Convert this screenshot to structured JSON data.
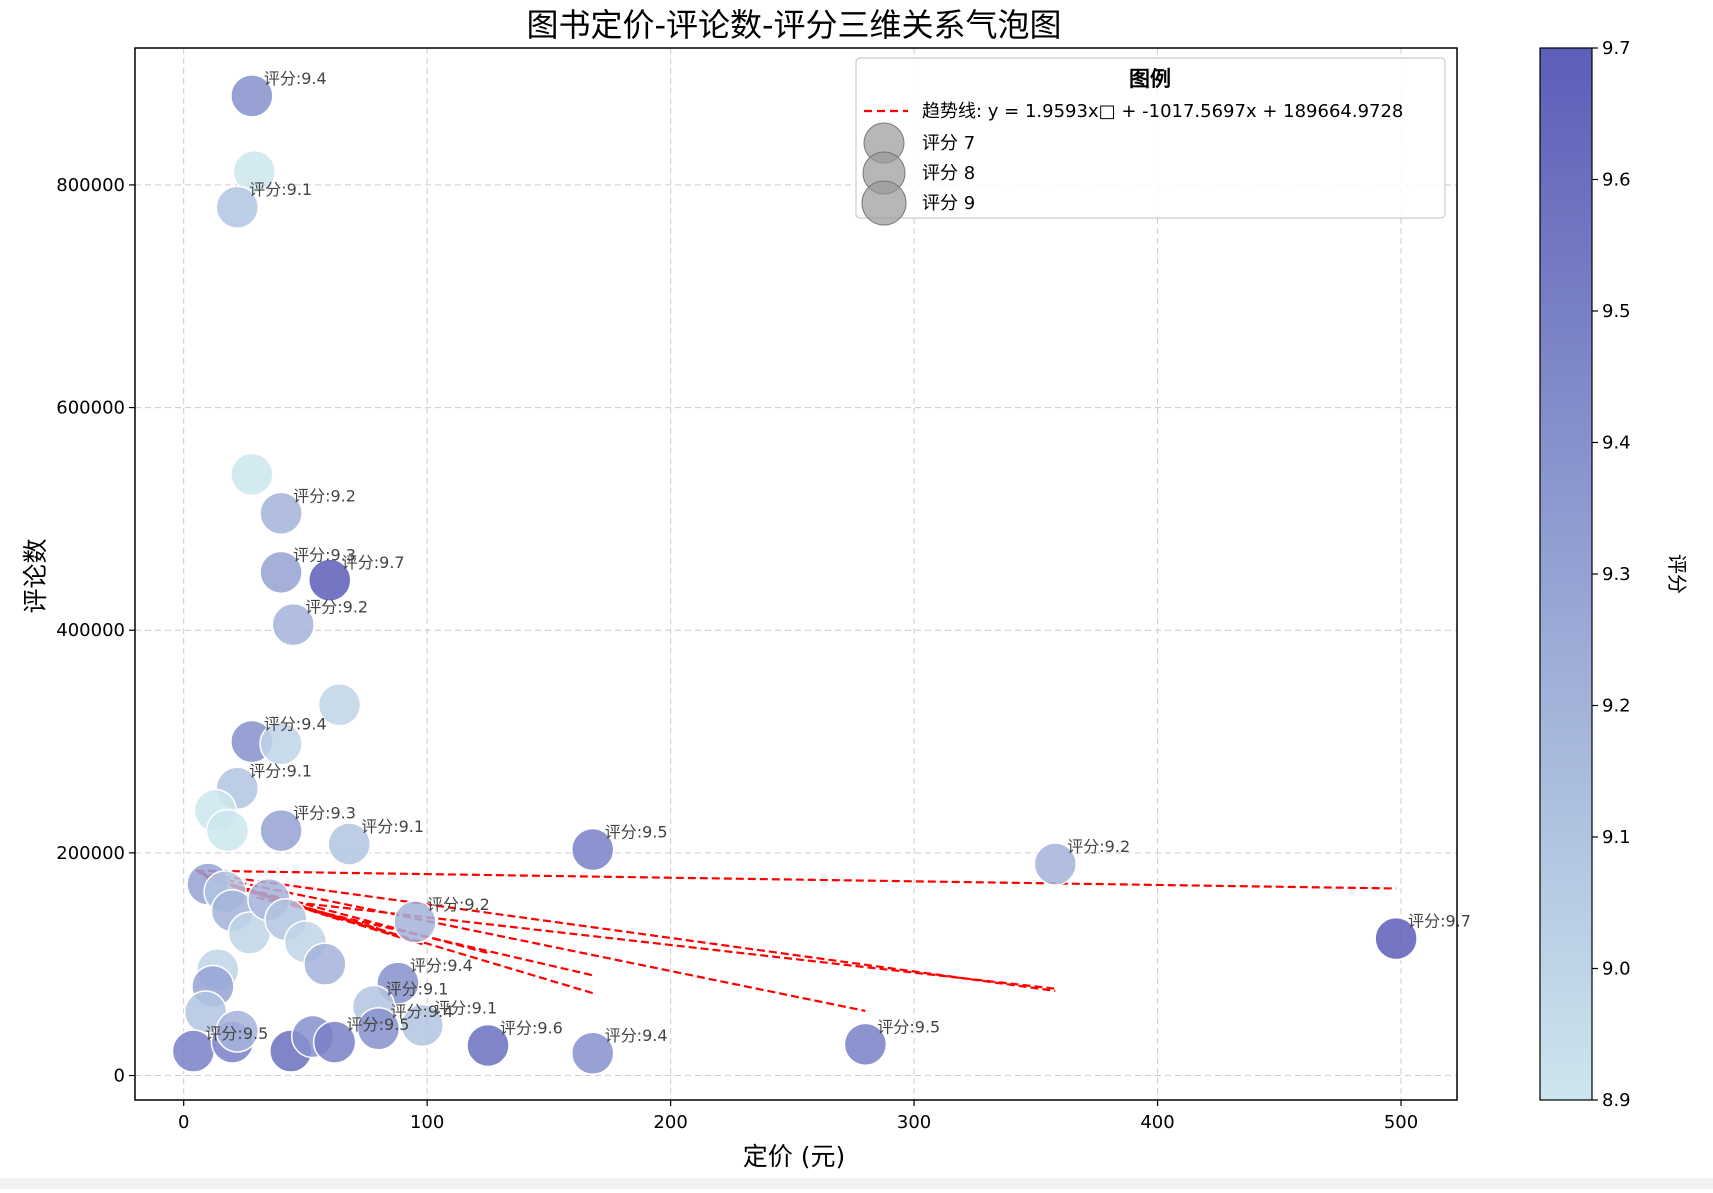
{
  "chart_data": {
    "type": "scatter",
    "title": "图书定价-评论数-评分三维关系气泡图",
    "xlabel": "定价 (元)",
    "ylabel": "评论数",
    "xlim": [
      -20,
      523
    ],
    "ylim": [
      -22000,
      923000
    ],
    "xticks": [
      0,
      100,
      200,
      300,
      400,
      500
    ],
    "yticks": [
      0,
      200000,
      400000,
      600000,
      800000
    ],
    "grid": true,
    "colorbar": {
      "label": "评分",
      "min": 8.9,
      "max": 9.7,
      "ticks": [
        8.9,
        9.0,
        9.1,
        9.2,
        9.3,
        9.4,
        9.5,
        9.6,
        9.7
      ],
      "color_low": "#cde6ee",
      "color_high": "#5c5eb8"
    },
    "legend": {
      "title": "图例",
      "position": "top-right",
      "trend_label": "趋势线: y = 1.9593x□ + -1017.5697x + 189664.9728",
      "size_labels": [
        "评分 7",
        "评分 8",
        "评分 9"
      ],
      "trend_color": "#ff0000",
      "marker_color": "#999999"
    },
    "annotation_prefix": "评分:",
    "points": [
      {
        "x": 28,
        "y": 880000,
        "rating": 9.4,
        "label": "评分:9.4"
      },
      {
        "x": 29,
        "y": 812000,
        "rating": 8.9,
        "label": ""
      },
      {
        "x": 22,
        "y": 780000,
        "rating": 9.1,
        "label": "评分:9.1"
      },
      {
        "x": 28,
        "y": 540000,
        "rating": 8.9,
        "label": ""
      },
      {
        "x": 40,
        "y": 505000,
        "rating": 9.2,
        "label": "评分:9.2"
      },
      {
        "x": 40,
        "y": 452000,
        "rating": 9.3,
        "label": "评分:9.3"
      },
      {
        "x": 60,
        "y": 445000,
        "rating": 9.7,
        "label": "评分:9.7"
      },
      {
        "x": 45,
        "y": 405000,
        "rating": 9.2,
        "label": "评分:9.2"
      },
      {
        "x": 64,
        "y": 333000,
        "rating": 9.0,
        "label": ""
      },
      {
        "x": 28,
        "y": 300000,
        "rating": 9.4,
        "label": "评分:9.4"
      },
      {
        "x": 40,
        "y": 298000,
        "rating": 9.0,
        "label": ""
      },
      {
        "x": 22,
        "y": 258000,
        "rating": 9.1,
        "label": "评分:9.1"
      },
      {
        "x": 13,
        "y": 238000,
        "rating": 8.9,
        "label": ""
      },
      {
        "x": 18,
        "y": 220000,
        "rating": 8.9,
        "label": ""
      },
      {
        "x": 40,
        "y": 220000,
        "rating": 9.3,
        "label": "评分:9.3"
      },
      {
        "x": 68,
        "y": 208000,
        "rating": 9.1,
        "label": "评分:9.1"
      },
      {
        "x": 168,
        "y": 203000,
        "rating": 9.5,
        "label": "评分:9.5"
      },
      {
        "x": 358,
        "y": 190000,
        "rating": 9.2,
        "label": "评分:9.2"
      },
      {
        "x": 498,
        "y": 123000,
        "rating": 9.7,
        "label": "评分:9.7"
      },
      {
        "x": 10,
        "y": 172000,
        "rating": 9.3,
        "label": ""
      },
      {
        "x": 17,
        "y": 165000,
        "rating": 9.1,
        "label": ""
      },
      {
        "x": 20,
        "y": 148000,
        "rating": 9.2,
        "label": ""
      },
      {
        "x": 27,
        "y": 128000,
        "rating": 9.0,
        "label": ""
      },
      {
        "x": 35,
        "y": 158000,
        "rating": 9.2,
        "label": ""
      },
      {
        "x": 42,
        "y": 140000,
        "rating": 9.1,
        "label": ""
      },
      {
        "x": 50,
        "y": 120000,
        "rating": 9.0,
        "label": ""
      },
      {
        "x": 95,
        "y": 138000,
        "rating": 9.2,
        "label": "评分:9.2"
      },
      {
        "x": 58,
        "y": 100000,
        "rating": 9.2,
        "label": ""
      },
      {
        "x": 14,
        "y": 95000,
        "rating": 9.0,
        "label": ""
      },
      {
        "x": 12,
        "y": 80000,
        "rating": 9.3,
        "label": ""
      },
      {
        "x": 9,
        "y": 57000,
        "rating": 9.1,
        "label": ""
      },
      {
        "x": 88,
        "y": 83000,
        "rating": 9.4,
        "label": "评分:9.4"
      },
      {
        "x": 78,
        "y": 62000,
        "rating": 9.1,
        "label": "评分:9.1"
      },
      {
        "x": 98,
        "y": 45000,
        "rating": 9.1,
        "label": "评分:9.1"
      },
      {
        "x": 80,
        "y": 42000,
        "rating": 9.4,
        "label": "评分:9.4"
      },
      {
        "x": 4,
        "y": 22000,
        "rating": 9.5,
        "label": "评分:9.5"
      },
      {
        "x": 20,
        "y": 30000,
        "rating": 9.5,
        "label": ""
      },
      {
        "x": 22,
        "y": 40000,
        "rating": 9.2,
        "label": ""
      },
      {
        "x": 44,
        "y": 22000,
        "rating": 9.6,
        "label": ""
      },
      {
        "x": 53,
        "y": 35000,
        "rating": 9.4,
        "label": ""
      },
      {
        "x": 62,
        "y": 30000,
        "rating": 9.5,
        "label": "评分:9.5"
      },
      {
        "x": 125,
        "y": 27000,
        "rating": 9.6,
        "label": "评分:9.6"
      },
      {
        "x": 168,
        "y": 20000,
        "rating": 9.4,
        "label": "评分:9.4"
      },
      {
        "x": 280,
        "y": 28000,
        "rating": 9.5,
        "label": "评分:9.5"
      }
    ],
    "trend_segments": [
      {
        "x1": 5,
        "y1": 184000,
        "x2": 498,
        "y2": 168000
      },
      {
        "x1": 6,
        "y1": 182000,
        "x2": 358,
        "y2": 76000
      },
      {
        "x1": 8,
        "y1": 180000,
        "x2": 280,
        "y2": 58000
      },
      {
        "x1": 9,
        "y1": 178000,
        "x2": 168,
        "y2": 74000
      },
      {
        "x1": 12,
        "y1": 176000,
        "x2": 125,
        "y2": 110000
      },
      {
        "x1": 15,
        "y1": 175000,
        "x2": 98,
        "y2": 118000
      },
      {
        "x1": 18,
        "y1": 172000,
        "x2": 88,
        "y2": 126000
      },
      {
        "x1": 20,
        "y1": 170000,
        "x2": 95,
        "y2": 120000
      },
      {
        "x1": 22,
        "y1": 168000,
        "x2": 80,
        "y2": 132000
      },
      {
        "x1": 30,
        "y1": 160000,
        "x2": 168,
        "y2": 90000
      },
      {
        "x1": 28,
        "y1": 165000,
        "x2": 64,
        "y2": 140000
      },
      {
        "x1": 36,
        "y1": 158000,
        "x2": 358,
        "y2": 78000
      }
    ]
  }
}
